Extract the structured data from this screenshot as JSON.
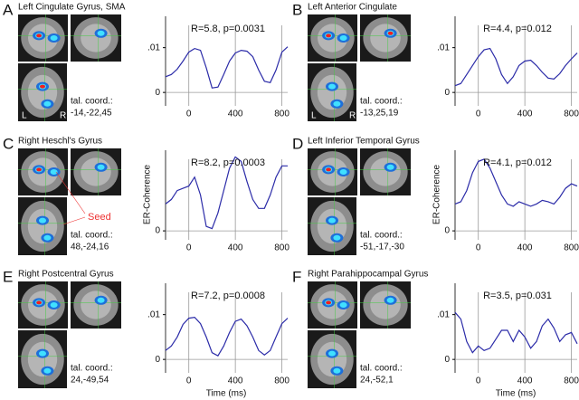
{
  "chart_data": [
    {
      "type": "line",
      "panel": "A",
      "title": "Left Cingulate Gyrus, SMA",
      "annotation": "R=5.8, p=0.0031",
      "coord_label": "tal. coord.:",
      "coord": "-14,-22,45",
      "orientation_labels": [
        "L",
        "R"
      ],
      "color": "#2b2ba8",
      "x": [
        -200,
        -150,
        -100,
        -50,
        0,
        50,
        100,
        150,
        200,
        250,
        300,
        350,
        400,
        450,
        500,
        550,
        600,
        650,
        700,
        750,
        800,
        850
      ],
      "values": [
        0.0035,
        0.004,
        0.0052,
        0.007,
        0.009,
        0.0098,
        0.0094,
        0.0055,
        0.001,
        0.0012,
        0.004,
        0.007,
        0.0088,
        0.0094,
        0.0092,
        0.008,
        0.005,
        0.0025,
        0.0022,
        0.005,
        0.009,
        0.0102
      ],
      "xlim": [
        -200,
        850
      ],
      "ylim": [
        -0.003,
        0.017
      ],
      "xticks": [
        0,
        400,
        800
      ],
      "yticks": [
        0,
        {
          "value": 0.01,
          "label": ".01"
        }
      ],
      "grid": true
    },
    {
      "type": "line",
      "panel": "B",
      "title": "Left Anterior Cingulate",
      "annotation": "R=4.4, p=0.012",
      "coord_label": "tal. coord.:",
      "coord": "-13,25,19",
      "orientation_labels": [
        "L",
        "R"
      ],
      "color": "#2b2ba8",
      "x": [
        -200,
        -150,
        -100,
        -50,
        0,
        50,
        100,
        150,
        200,
        250,
        300,
        350,
        400,
        450,
        500,
        550,
        600,
        650,
        700,
        750,
        800,
        850
      ],
      "values": [
        0.0015,
        0.002,
        0.004,
        0.006,
        0.008,
        0.0095,
        0.0098,
        0.0075,
        0.004,
        0.002,
        0.0035,
        0.006,
        0.007,
        0.0072,
        0.006,
        0.0045,
        0.0032,
        0.003,
        0.0042,
        0.006,
        0.0075,
        0.0088
      ],
      "xlim": [
        -200,
        850
      ],
      "ylim": [
        -0.003,
        0.017
      ],
      "xticks": [
        0,
        400,
        800
      ],
      "yticks": [
        0,
        {
          "value": 0.01,
          "label": ".01"
        }
      ],
      "grid": true
    },
    {
      "type": "line",
      "panel": "C",
      "title": "Right Heschl's Gyrus",
      "annotation": "R=8.2, p=0.0003",
      "coord_label": "tal. coord.:",
      "coord": "48,-24,16",
      "seed_label": "Seed",
      "y_label": "ER-Coherence",
      "color": "#2b2ba8",
      "x": [
        -200,
        -150,
        -100,
        -50,
        0,
        50,
        100,
        150,
        200,
        250,
        300,
        350,
        400,
        450,
        500,
        550,
        600,
        650,
        700,
        750,
        800,
        850
      ],
      "values": [
        0.006,
        0.007,
        0.009,
        0.0095,
        0.01,
        0.012,
        0.008,
        0.001,
        0.0005,
        0.004,
        0.009,
        0.014,
        0.0165,
        0.0155,
        0.011,
        0.007,
        0.005,
        0.005,
        0.008,
        0.012,
        0.0145,
        0.0145
      ],
      "xlim": [
        -200,
        850
      ],
      "ylim": [
        -0.002,
        0.018
      ],
      "xticks": [
        0,
        400,
        800
      ],
      "yticks": [
        0
      ],
      "grid": true
    },
    {
      "type": "line",
      "panel": "D",
      "title": "Left Inferior Temporal Gyrus",
      "annotation": "R=4.1, p=0.012",
      "coord_label": "tal. coord.:",
      "coord": "-51,-17,-30",
      "y_label": "ER-Coherence",
      "color": "#2b2ba8",
      "x": [
        -200,
        -150,
        -100,
        -50,
        0,
        50,
        100,
        150,
        200,
        250,
        300,
        350,
        400,
        450,
        500,
        550,
        600,
        650,
        700,
        750,
        800,
        850
      ],
      "values": [
        0.006,
        0.0065,
        0.009,
        0.013,
        0.0155,
        0.016,
        0.014,
        0.011,
        0.008,
        0.006,
        0.0055,
        0.0065,
        0.006,
        0.0055,
        0.006,
        0.0068,
        0.0065,
        0.006,
        0.0075,
        0.0095,
        0.0105,
        0.01
      ],
      "xlim": [
        -200,
        850
      ],
      "ylim": [
        -0.002,
        0.018
      ],
      "xticks": [
        0,
        400,
        800
      ],
      "yticks": [
        0
      ],
      "grid": true
    },
    {
      "type": "line",
      "panel": "E",
      "title": "Right Postcentral Gyrus",
      "annotation": "R=7.2, p=0.0008",
      "coord_label": "tal. coord.:",
      "coord": "24,-49,54",
      "x_label": "Time (ms)",
      "color": "#2b2ba8",
      "x": [
        -200,
        -150,
        -100,
        -50,
        0,
        50,
        100,
        150,
        200,
        250,
        300,
        350,
        400,
        450,
        500,
        550,
        600,
        650,
        700,
        750,
        800,
        850
      ],
      "values": [
        0.002,
        0.003,
        0.005,
        0.0078,
        0.0092,
        0.0094,
        0.008,
        0.005,
        0.0015,
        0.0008,
        0.003,
        0.006,
        0.0085,
        0.009,
        0.0075,
        0.005,
        0.002,
        0.001,
        0.002,
        0.005,
        0.008,
        0.0092
      ],
      "xlim": [
        -200,
        850
      ],
      "ylim": [
        -0.003,
        0.017
      ],
      "xticks": [
        0,
        400,
        800
      ],
      "yticks": [
        0,
        {
          "value": 0.01,
          "label": ".01"
        }
      ],
      "grid": true
    },
    {
      "type": "line",
      "panel": "F",
      "title": "Right Parahippocampal Gyrus",
      "annotation": "R=3.5, p=0.031",
      "coord_label": "tal. coord.:",
      "coord": "24,-52,1",
      "x_label": "Time (ms)",
      "color": "#2b2ba8",
      "x": [
        -200,
        -150,
        -100,
        -50,
        0,
        50,
        100,
        150,
        200,
        250,
        300,
        350,
        400,
        450,
        500,
        550,
        600,
        650,
        700,
        750,
        800,
        850
      ],
      "values": [
        0.0105,
        0.009,
        0.004,
        0.0015,
        0.003,
        0.002,
        0.0025,
        0.0045,
        0.0065,
        0.0065,
        0.004,
        0.0065,
        0.005,
        0.0025,
        0.004,
        0.0075,
        0.009,
        0.007,
        0.004,
        0.0055,
        0.006,
        0.0035
      ],
      "xlim": [
        -200,
        850
      ],
      "ylim": [
        -0.003,
        0.017
      ],
      "xticks": [
        0,
        400,
        800
      ],
      "yticks": [
        0,
        {
          "value": 0.01,
          "label": ".01"
        }
      ],
      "grid": true
    }
  ]
}
